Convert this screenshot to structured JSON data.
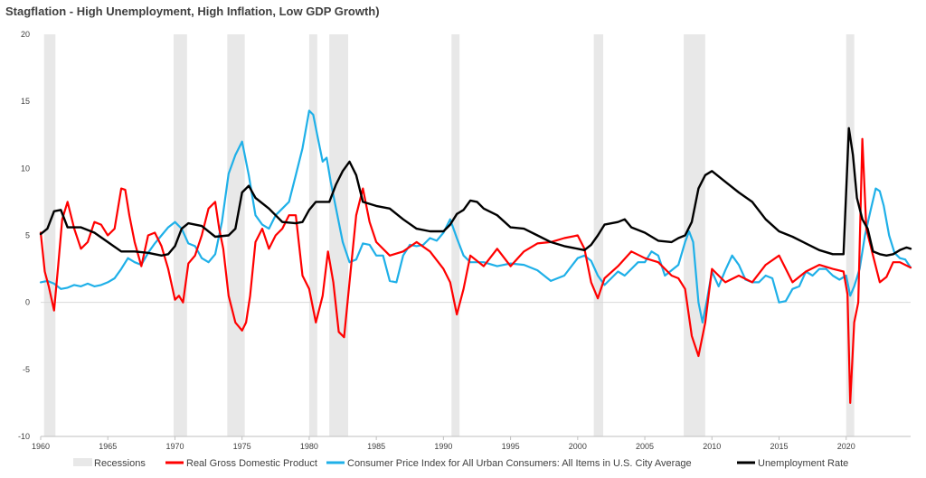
{
  "chart_data": {
    "type": "line",
    "title": "Stagflation - High Unemployment, High Inflation, Low GDP Growth)",
    "xlim": [
      1960,
      2024.8
    ],
    "ylim": [
      -10,
      20
    ],
    "y_ticks": [
      -10,
      -5,
      0,
      5,
      10,
      15,
      20
    ],
    "x_ticks": [
      1960,
      1965,
      1970,
      1975,
      1980,
      1985,
      1990,
      1995,
      2000,
      2005,
      2010,
      2015,
      2020
    ],
    "grid": false,
    "legend_position": "bottom",
    "recessions": {
      "name": "Recessions",
      "color": "#e8e8e8",
      "periods": [
        [
          1960.25,
          1961.1
        ],
        [
          1969.9,
          1970.9
        ],
        [
          1973.9,
          1975.2
        ],
        [
          1980.0,
          1980.6
        ],
        [
          1981.5,
          1982.9
        ],
        [
          1990.6,
          1991.2
        ],
        [
          2001.2,
          2001.9
        ],
        [
          2007.9,
          2009.5
        ],
        [
          2020.0,
          2020.6
        ]
      ]
    },
    "series": [
      {
        "name": "Real Gross Domestic Product",
        "color": "#ff0000",
        "x": [
          1960,
          1960.3,
          1960.6,
          1961,
          1961.3,
          1961.6,
          1962,
          1962.5,
          1963,
          1963.5,
          1964,
          1964.5,
          1965,
          1965.5,
          1966,
          1966.3,
          1966.6,
          1967,
          1967.5,
          1968,
          1968.5,
          1969,
          1969.5,
          1970,
          1970.3,
          1970.6,
          1971,
          1971.5,
          1972,
          1972.5,
          1973,
          1973.3,
          1973.6,
          1974,
          1974.5,
          1975,
          1975.3,
          1975.6,
          1976,
          1976.5,
          1977,
          1977.5,
          1978,
          1978.5,
          1979,
          1979.5,
          1980,
          1980.5,
          1981,
          1981.4,
          1981.8,
          1982.2,
          1982.6,
          1983,
          1983.5,
          1984,
          1984.5,
          1985,
          1986,
          1987,
          1988,
          1989,
          1990,
          1990.5,
          1991,
          1991.5,
          1992,
          1993,
          1994,
          1995,
          1996,
          1997,
          1998,
          1999,
          2000,
          2000.5,
          2001,
          2001.5,
          2002,
          2003,
          2004,
          2005,
          2006,
          2007,
          2007.5,
          2008,
          2008.5,
          2009,
          2009.5,
          2010,
          2011,
          2012,
          2013,
          2014,
          2015,
          2016,
          2017,
          2018,
          2019,
          2019.8,
          2020.1,
          2020.3,
          2020.6,
          2020.9,
          2021.2,
          2021.5,
          2022,
          2022.5,
          2023,
          2023.5,
          2024,
          2024.8
        ],
        "values": [
          5.2,
          2.3,
          1.2,
          -0.6,
          2.7,
          6.2,
          7.5,
          5.5,
          4.0,
          4.5,
          6.0,
          5.8,
          5.0,
          5.5,
          8.5,
          8.4,
          6.5,
          4.5,
          2.7,
          5.0,
          5.2,
          4.2,
          2.5,
          0.2,
          0.5,
          0.0,
          2.9,
          3.5,
          5.0,
          7.0,
          7.5,
          5.5,
          4.0,
          0.5,
          -1.5,
          -2.1,
          -1.5,
          0.5,
          4.5,
          5.5,
          4.0,
          5.0,
          5.5,
          6.5,
          6.5,
          2.0,
          1.0,
          -1.5,
          0.5,
          3.8,
          1.5,
          -2.2,
          -2.6,
          1.5,
          6.5,
          8.5,
          6.0,
          4.5,
          3.5,
          3.8,
          4.5,
          3.8,
          2.5,
          1.5,
          -0.9,
          1.0,
          3.5,
          2.7,
          4.0,
          2.7,
          3.8,
          4.4,
          4.5,
          4.8,
          5.0,
          4.0,
          1.5,
          0.3,
          1.8,
          2.7,
          3.8,
          3.3,
          3.0,
          2.0,
          1.8,
          1.0,
          -2.5,
          -4.0,
          -1.5,
          2.5,
          1.5,
          2.0,
          1.5,
          2.8,
          3.5,
          1.5,
          2.3,
          2.8,
          2.5,
          2.3,
          0.6,
          -7.5,
          -1.5,
          0.0,
          12.2,
          5.5,
          3.5,
          1.5,
          1.9,
          3.0,
          3.0,
          2.6
        ]
      },
      {
        "name": "Consumer Price Index for All Urban Consumers: All Items in U.S. City Average",
        "color": "#1fb0e8",
        "x": [
          1960,
          1960.5,
          1961,
          1961.5,
          1962,
          1962.5,
          1963,
          1963.5,
          1964,
          1964.5,
          1965,
          1965.5,
          1966,
          1966.5,
          1967,
          1967.5,
          1968,
          1968.5,
          1969,
          1969.5,
          1970,
          1970.5,
          1971,
          1971.5,
          1972,
          1972.5,
          1973,
          1973.5,
          1974,
          1974.5,
          1975,
          1975.5,
          1976,
          1976.5,
          1977,
          1977.5,
          1978,
          1978.5,
          1979,
          1979.5,
          1980,
          1980.3,
          1980.6,
          1981,
          1981.3,
          1981.6,
          1982,
          1982.5,
          1983,
          1983.5,
          1984,
          1984.5,
          1985,
          1985.5,
          1986,
          1986.5,
          1987,
          1987.5,
          1988,
          1988.5,
          1989,
          1989.5,
          1990,
          1990.5,
          1991,
          1991.5,
          1992,
          1993,
          1994,
          1995,
          1996,
          1997,
          1998,
          1999,
          2000,
          2000.5,
          2001,
          2001.5,
          2002,
          2002.5,
          2003,
          2003.5,
          2004,
          2004.5,
          2005,
          2005.5,
          2006,
          2006.5,
          2007,
          2007.5,
          2008,
          2008.3,
          2008.6,
          2009,
          2009.3,
          2009.6,
          2010,
          2010.5,
          2011,
          2011.5,
          2012,
          2012.5,
          2013,
          2013.5,
          2014,
          2014.5,
          2015,
          2015.5,
          2016,
          2016.5,
          2017,
          2017.5,
          2018,
          2018.5,
          2019,
          2019.5,
          2020,
          2020.3,
          2020.6,
          2021,
          2021.4,
          2021.8,
          2022.2,
          2022.5,
          2022.8,
          2023.2,
          2023.6,
          2024,
          2024.4,
          2024.8
        ],
        "values": [
          1.5,
          1.6,
          1.4,
          1.0,
          1.1,
          1.3,
          1.2,
          1.4,
          1.2,
          1.3,
          1.5,
          1.8,
          2.5,
          3.3,
          3.0,
          2.8,
          3.7,
          4.4,
          5.0,
          5.6,
          6.0,
          5.5,
          4.4,
          4.2,
          3.3,
          3.0,
          3.6,
          6.0,
          9.6,
          11.0,
          12.0,
          9.5,
          6.5,
          5.8,
          5.5,
          6.5,
          7.0,
          7.5,
          9.5,
          11.5,
          14.3,
          14.0,
          12.5,
          10.5,
          10.8,
          9.0,
          7.0,
          4.5,
          3.0,
          3.2,
          4.4,
          4.3,
          3.5,
          3.5,
          1.6,
          1.5,
          3.5,
          4.3,
          4.2,
          4.3,
          4.8,
          4.6,
          5.2,
          6.2,
          4.8,
          3.5,
          3.0,
          3.0,
          2.7,
          2.9,
          2.8,
          2.4,
          1.6,
          2.0,
          3.3,
          3.5,
          3.1,
          2.0,
          1.3,
          1.8,
          2.3,
          2.0,
          2.5,
          3.0,
          3.0,
          3.8,
          3.5,
          2.0,
          2.4,
          2.8,
          4.5,
          5.3,
          4.5,
          0.0,
          -1.5,
          0.0,
          2.3,
          1.2,
          2.4,
          3.5,
          2.8,
          1.7,
          1.5,
          1.5,
          2.0,
          1.8,
          0.0,
          0.1,
          1.0,
          1.2,
          2.3,
          2.0,
          2.5,
          2.5,
          2.0,
          1.7,
          2.0,
          0.5,
          1.2,
          2.5,
          5.0,
          6.8,
          8.5,
          8.3,
          7.2,
          5.0,
          3.7,
          3.3,
          3.2,
          2.6
        ]
      },
      {
        "name": "Unemployment Rate",
        "color": "#000000",
        "x": [
          1960,
          1960.5,
          1961,
          1961.5,
          1962,
          1963,
          1964,
          1965,
          1966,
          1967,
          1968,
          1969,
          1969.5,
          1970,
          1970.5,
          1971,
          1972,
          1973,
          1974,
          1974.5,
          1975,
          1975.5,
          1976,
          1977,
          1978,
          1979,
          1979.5,
          1980,
          1980.5,
          1981,
          1981.5,
          1982,
          1982.5,
          1983,
          1983.5,
          1984,
          1985,
          1986,
          1987,
          1988,
          1989,
          1990,
          1990.5,
          1991,
          1991.5,
          1992,
          1992.5,
          1993,
          1994,
          1995,
          1996,
          1997,
          1998,
          1999,
          2000,
          2000.5,
          2001,
          2001.5,
          2002,
          2003,
          2003.5,
          2004,
          2005,
          2006,
          2007,
          2007.5,
          2008,
          2008.5,
          2009,
          2009.5,
          2010,
          2011,
          2012,
          2013,
          2014,
          2015,
          2016,
          2017,
          2018,
          2019,
          2019.8,
          2020.2,
          2020.5,
          2020.8,
          2021.2,
          2021.6,
          2022,
          2022.5,
          2023,
          2023.5,
          2024,
          2024.5,
          2024.8
        ],
        "values": [
          5.1,
          5.5,
          6.8,
          6.9,
          5.6,
          5.6,
          5.2,
          4.5,
          3.8,
          3.8,
          3.7,
          3.5,
          3.6,
          4.2,
          5.5,
          5.9,
          5.7,
          4.9,
          5.0,
          5.5,
          8.2,
          8.7,
          7.8,
          7.0,
          6.0,
          5.9,
          6.0,
          6.9,
          7.5,
          7.5,
          7.5,
          8.8,
          9.8,
          10.5,
          9.5,
          7.5,
          7.2,
          7.0,
          6.2,
          5.5,
          5.3,
          5.3,
          5.8,
          6.6,
          6.9,
          7.6,
          7.5,
          7.0,
          6.5,
          5.6,
          5.5,
          5.0,
          4.5,
          4.2,
          4.0,
          3.9,
          4.3,
          5.0,
          5.8,
          6.0,
          6.2,
          5.6,
          5.2,
          4.6,
          4.5,
          4.8,
          5.0,
          6.0,
          8.5,
          9.5,
          9.8,
          9.0,
          8.2,
          7.5,
          6.2,
          5.3,
          4.9,
          4.4,
          3.9,
          3.6,
          3.6,
          13.0,
          11.0,
          7.8,
          6.2,
          5.5,
          3.8,
          3.6,
          3.5,
          3.6,
          3.9,
          4.1,
          4.0
        ]
      }
    ]
  }
}
